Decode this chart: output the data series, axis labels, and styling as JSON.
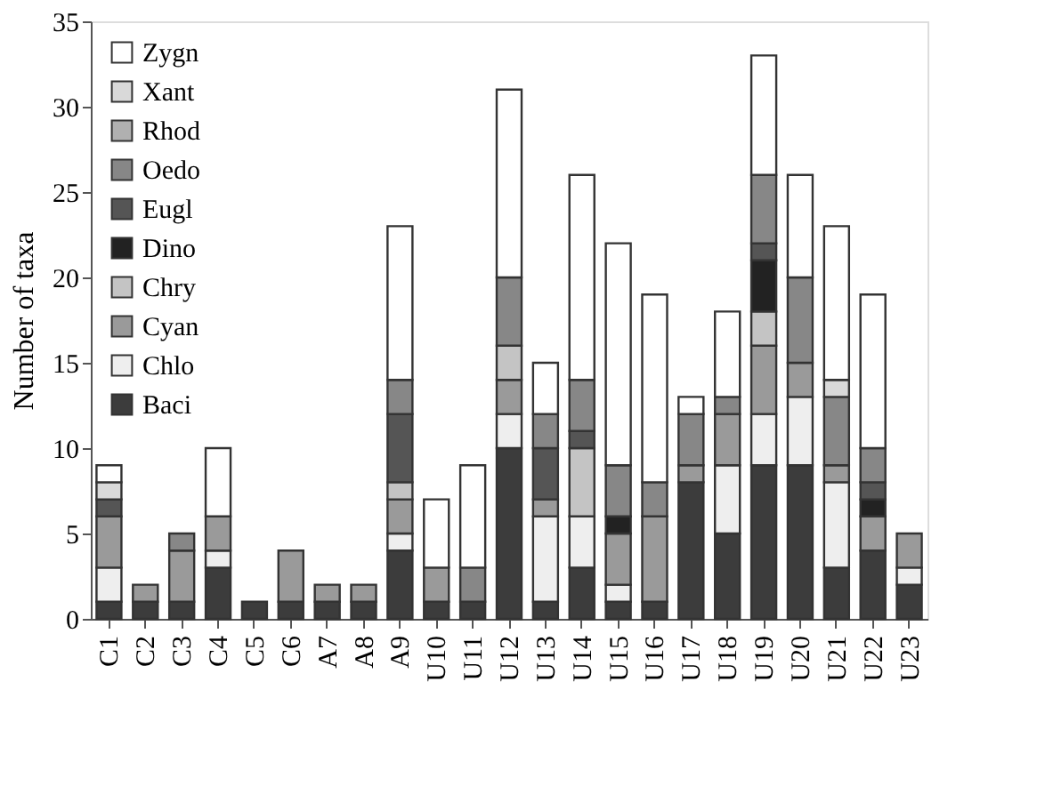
{
  "chart_data": {
    "type": "bar",
    "stacked": true,
    "ylabel": "Number of taxa",
    "categories": [
      "C1",
      "C2",
      "C3",
      "C4",
      "C5",
      "C6",
      "A7",
      "A8",
      "A9",
      "U10",
      "U11",
      "U12",
      "U13",
      "U14",
      "U15",
      "U16",
      "U17",
      "U18",
      "U19",
      "U20",
      "U21",
      "U22",
      "U23"
    ],
    "ylim": [
      0,
      35
    ],
    "yticks": [
      0,
      5,
      10,
      15,
      20,
      25,
      30,
      35
    ],
    "grid": false,
    "legend": "top left",
    "series": [
      {
        "name": "Baci",
        "color": "#3c3c3c",
        "values": [
          1,
          1,
          1,
          3,
          1,
          1,
          1,
          1,
          4,
          1,
          1,
          10,
          1,
          3,
          1,
          1,
          8,
          5,
          9,
          9,
          3,
          4,
          2
        ]
      },
      {
        "name": "Chlo",
        "color": "#eeeeee",
        "values": [
          2,
          0,
          0,
          1,
          0,
          0,
          0,
          0,
          1,
          0,
          0,
          2,
          5,
          3,
          1,
          0,
          0,
          4,
          3,
          4,
          5,
          0,
          1
        ]
      },
      {
        "name": "Cyan",
        "color": "#9a9a9a",
        "values": [
          3,
          1,
          3,
          2,
          0,
          3,
          1,
          1,
          2,
          2,
          0,
          2,
          1,
          0,
          3,
          5,
          1,
          3,
          4,
          2,
          1,
          2,
          2
        ]
      },
      {
        "name": "Chry",
        "color": "#c4c4c4",
        "values": [
          0,
          0,
          0,
          0,
          0,
          0,
          0,
          0,
          1,
          0,
          0,
          2,
          0,
          4,
          0,
          0,
          0,
          0,
          2,
          0,
          0,
          0,
          0
        ]
      },
      {
        "name": "Dino",
        "color": "#222222",
        "values": [
          0,
          0,
          0,
          0,
          0,
          0,
          0,
          0,
          0,
          0,
          0,
          0,
          0,
          0,
          1,
          0,
          0,
          0,
          3,
          0,
          0,
          1,
          0
        ]
      },
      {
        "name": "Eugl",
        "color": "#555555",
        "values": [
          1,
          0,
          0,
          0,
          0,
          0,
          0,
          0,
          4,
          0,
          0,
          0,
          3,
          1,
          0,
          0,
          0,
          0,
          1,
          0,
          0,
          1,
          0
        ]
      },
      {
        "name": "Oedo",
        "color": "#878787",
        "values": [
          0,
          0,
          1,
          0,
          0,
          0,
          0,
          0,
          2,
          0,
          2,
          4,
          2,
          3,
          3,
          2,
          3,
          1,
          4,
          5,
          4,
          2,
          0
        ]
      },
      {
        "name": "Rhod",
        "color": "#b0b0b0",
        "values": [
          0,
          0,
          0,
          0,
          0,
          0,
          0,
          0,
          0,
          0,
          0,
          0,
          0,
          0,
          0,
          0,
          0,
          0,
          0,
          0,
          0,
          0,
          0
        ]
      },
      {
        "name": "Xant",
        "color": "#d9d9d9",
        "values": [
          1,
          0,
          0,
          0,
          0,
          0,
          0,
          0,
          0,
          0,
          0,
          0,
          0,
          0,
          0,
          0,
          0,
          0,
          0,
          0,
          1,
          0,
          0
        ]
      },
      {
        "name": "Zygn",
        "color": "#ffffff",
        "values": [
          1,
          0,
          0,
          4,
          0,
          0,
          0,
          0,
          9,
          4,
          6,
          11,
          3,
          12,
          13,
          11,
          1,
          5,
          7,
          6,
          9,
          9,
          0
        ]
      }
    ]
  }
}
